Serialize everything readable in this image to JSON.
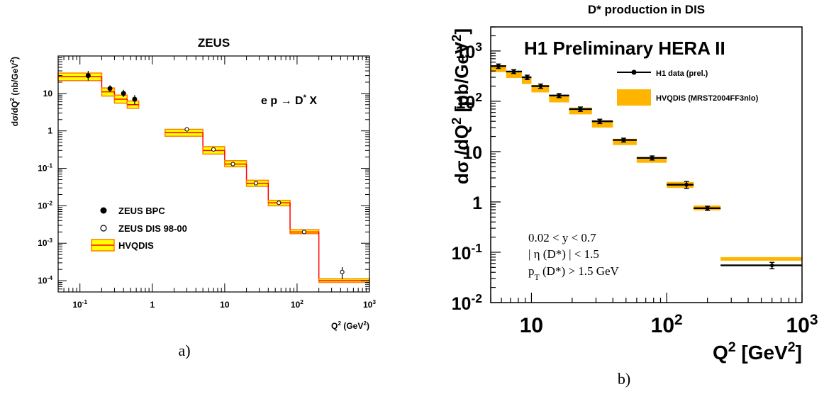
{
  "chart_data": [
    {
      "type": "step",
      "panel_label": "a)",
      "title": "ZEUS",
      "xlabel": "Q",
      "xlabel_sup": "2",
      "xlabel_unit": "(GeV",
      "xlabel_unit_sup": "2",
      "xlabel_unit_end": ")",
      "ylabel": "dσ/dQ",
      "ylabel_sup": "2",
      "ylabel_unit": "(nb/GeV",
      "ylabel_unit_sup": "2",
      "ylabel_unit_end": ")",
      "annotation": {
        "pre": "e p",
        "arrow": "→",
        "main": "D",
        "sup": "*",
        "post": " X"
      },
      "x_scale": "log",
      "y_scale": "log",
      "xlim": [
        0.05,
        1000
      ],
      "ylim": [
        5e-05,
        100
      ],
      "x_ticks": [
        {
          "base": "10",
          "exp": "-1",
          "value": 0.1
        },
        {
          "base": "1",
          "exp": "",
          "value": 1
        },
        {
          "base": "10",
          "exp": "",
          "value": 10
        },
        {
          "base": "10",
          "exp": "2",
          "value": 100
        },
        {
          "base": "10",
          "exp": "3",
          "value": 1000
        }
      ],
      "y_ticks": [
        {
          "base": "10",
          "exp": "",
          "value": 10
        },
        {
          "base": "1",
          "exp": "",
          "value": 1
        },
        {
          "base": "10",
          "exp": "-1",
          "value": 0.1
        },
        {
          "base": "10",
          "exp": "-2",
          "value": 0.01
        },
        {
          "base": "10",
          "exp": "-3",
          "value": 0.001
        },
        {
          "base": "10",
          "exp": "-4",
          "value": 0.0001
        }
      ],
      "legend": [
        {
          "label": "ZEUS  BPC",
          "marker": "filled-circle"
        },
        {
          "label": "ZEUS  DIS  98-00",
          "marker": "open-circle"
        },
        {
          "label": "HVQDIS",
          "marker": "band"
        }
      ],
      "legend_position": "bottom-left",
      "hvqdis_bins": [
        {
          "x": [
            0.05,
            0.2
          ],
          "center": 28,
          "lo": 22,
          "hi": 35
        },
        {
          "x": [
            0.2,
            0.3
          ],
          "center": 11,
          "lo": 8.5,
          "hi": 14
        },
        {
          "x": [
            0.3,
            0.45
          ],
          "center": 7,
          "lo": 5.5,
          "hi": 9
        },
        {
          "x": [
            0.45,
            0.65
          ],
          "center": 5,
          "lo": 4,
          "hi": 6.3
        },
        {
          "x": [
            1.5,
            5
          ],
          "center": 0.9,
          "lo": 0.72,
          "hi": 1.1
        },
        {
          "x": [
            5,
            10
          ],
          "center": 0.3,
          "lo": 0.24,
          "hi": 0.38
        },
        {
          "x": [
            10,
            20
          ],
          "center": 0.13,
          "lo": 0.11,
          "hi": 0.16
        },
        {
          "x": [
            20,
            40
          ],
          "center": 0.04,
          "lo": 0.033,
          "hi": 0.048
        },
        {
          "x": [
            40,
            80
          ],
          "center": 0.012,
          "lo": 0.01,
          "hi": 0.014
        },
        {
          "x": [
            80,
            200
          ],
          "center": 0.002,
          "lo": 0.0018,
          "hi": 0.0023
        },
        {
          "x": [
            200,
            1000
          ],
          "center": 0.0001,
          "lo": 9e-05,
          "hi": 0.000112
        }
      ],
      "zeus_bpc": [
        {
          "x": 0.13,
          "y": 30,
          "err_lo": 22,
          "err_hi": 40
        },
        {
          "x": 0.26,
          "y": 13.5,
          "err_lo": 11,
          "err_hi": 16.5
        },
        {
          "x": 0.4,
          "y": 10,
          "err_lo": 8,
          "err_hi": 12.5
        },
        {
          "x": 0.57,
          "y": 7,
          "err_lo": 5,
          "err_hi": 9
        }
      ],
      "zeus_dis": [
        {
          "x": 3,
          "y": 1.1,
          "err_lo": 1.0,
          "err_hi": 1.2
        },
        {
          "x": 7,
          "y": 0.32,
          "err_lo": 0.29,
          "err_hi": 0.35
        },
        {
          "x": 13,
          "y": 0.13,
          "err_lo": 0.12,
          "err_hi": 0.14
        },
        {
          "x": 27,
          "y": 0.04,
          "err_lo": 0.037,
          "err_hi": 0.043
        },
        {
          "x": 56,
          "y": 0.012,
          "err_lo": 0.011,
          "err_hi": 0.013
        },
        {
          "x": 125,
          "y": 0.002,
          "err_lo": 0.0018,
          "err_hi": 0.0022
        },
        {
          "x": 420,
          "y": 0.00017,
          "err_lo": 0.00011,
          "err_hi": 0.00023
        }
      ],
      "colors": {
        "band": "#ffff00",
        "band_edge": "#ff7f00",
        "center": "#ff0000",
        "ink": "#000000"
      }
    },
    {
      "type": "step",
      "panel_label": "b)",
      "title": "D* production in DIS",
      "experiment_label": "H1 Preliminary HERA II",
      "xlabel": "Q",
      "xlabel_sup": "2",
      "xlabel_unit": " [GeV",
      "xlabel_unit_sup": "2",
      "xlabel_unit_end": "]",
      "ylabel": "dσ /dQ",
      "ylabel_sup": "2",
      "ylabel_unit": " [pb/GeV",
      "ylabel_unit_sup": "2",
      "ylabel_unit_end": "]",
      "x_scale": "log",
      "y_scale": "log",
      "xlim": [
        5,
        1000
      ],
      "ylim": [
        0.01,
        3000
      ],
      "x_ticks": [
        {
          "base": "10",
          "exp": "",
          "value": 10
        },
        {
          "base": "10",
          "exp": "2",
          "value": 100
        },
        {
          "base": "10",
          "exp": "3",
          "value": 1000
        }
      ],
      "y_ticks": [
        {
          "base": "10",
          "exp": "3",
          "value": 1000
        },
        {
          "base": "10",
          "exp": "2",
          "value": 100
        },
        {
          "base": "10",
          "exp": "",
          "value": 10
        },
        {
          "base": "1",
          "exp": "",
          "value": 1
        },
        {
          "base": "10",
          "exp": "-1",
          "value": 0.1
        },
        {
          "base": "10",
          "exp": "-2",
          "value": 0.01
        }
      ],
      "legend": [
        {
          "label": "H1 data (prel.)",
          "marker": "point-errorbar"
        },
        {
          "label": "HVQDIS (MRST2004FF3nlo)",
          "marker": "band"
        }
      ],
      "cuts": [
        {
          "pre": "0.02 < y < 0.7",
          "sub": "",
          "post": ""
        },
        {
          "pre": "| η (D*) | < 1.5",
          "sub": "",
          "post": ""
        },
        {
          "pre": "p",
          "sub": "T",
          "post": " (D*) > 1.5 GeV"
        }
      ],
      "h1_data": [
        {
          "x": 5.7,
          "x_lo": 5,
          "x_hi": 6.5,
          "y": 500,
          "err_lo": 450,
          "err_hi": 550
        },
        {
          "x": 7.4,
          "x_lo": 6.5,
          "x_hi": 8.5,
          "y": 390,
          "err_lo": 355,
          "err_hi": 425
        },
        {
          "x": 9.3,
          "x_lo": 8.5,
          "x_hi": 10,
          "y": 300,
          "err_lo": 270,
          "err_hi": 330
        },
        {
          "x": 11.7,
          "x_lo": 10,
          "x_hi": 13.5,
          "y": 200,
          "err_lo": 180,
          "err_hi": 220
        },
        {
          "x": 16,
          "x_lo": 13.5,
          "x_hi": 19,
          "y": 130,
          "err_lo": 118,
          "err_hi": 142
        },
        {
          "x": 23,
          "x_lo": 19,
          "x_hi": 28,
          "y": 70,
          "err_lo": 63,
          "err_hi": 77
        },
        {
          "x": 32,
          "x_lo": 28,
          "x_hi": 40,
          "y": 40,
          "err_lo": 36,
          "err_hi": 44
        },
        {
          "x": 48,
          "x_lo": 40,
          "x_hi": 60,
          "y": 17,
          "err_lo": 15.5,
          "err_hi": 18.5
        },
        {
          "x": 78,
          "x_lo": 60,
          "x_hi": 100,
          "y": 7.5,
          "err_lo": 6.8,
          "err_hi": 8.2
        },
        {
          "x": 140,
          "x_lo": 100,
          "x_hi": 158,
          "y": 2.2,
          "err_lo": 1.85,
          "err_hi": 2.55
        },
        {
          "x": 200,
          "x_lo": 158,
          "x_hi": 250,
          "y": 0.75,
          "err_lo": 0.68,
          "err_hi": 0.82
        },
        {
          "x": 600,
          "x_lo": 250,
          "x_hi": 1000,
          "y": 0.055,
          "err_lo": 0.047,
          "err_hi": 0.063
        }
      ],
      "hvqdis_bins": [
        {
          "x": [
            5,
            6.5
          ],
          "lo": 380,
          "hi": 520
        },
        {
          "x": [
            6.5,
            8.5
          ],
          "lo": 290,
          "hi": 400
        },
        {
          "x": [
            8.5,
            10
          ],
          "lo": 220,
          "hi": 310
        },
        {
          "x": [
            10,
            13.5
          ],
          "lo": 150,
          "hi": 210
        },
        {
          "x": [
            13.5,
            19
          ],
          "lo": 95,
          "hi": 135
        },
        {
          "x": [
            19,
            28
          ],
          "lo": 55,
          "hi": 75
        },
        {
          "x": [
            28,
            40
          ],
          "lo": 30,
          "hi": 42
        },
        {
          "x": [
            40,
            60
          ],
          "lo": 13.5,
          "hi": 18
        },
        {
          "x": [
            60,
            100
          ],
          "lo": 6,
          "hi": 7.8
        },
        {
          "x": [
            100,
            158
          ],
          "lo": 1.9,
          "hi": 2.5
        },
        {
          "x": [
            158,
            250
          ],
          "lo": 0.68,
          "hi": 0.85
        },
        {
          "x": [
            250,
            1000
          ],
          "lo": 0.068,
          "hi": 0.08
        }
      ],
      "colors": {
        "band": "#ffb400",
        "ink": "#000000"
      }
    }
  ]
}
